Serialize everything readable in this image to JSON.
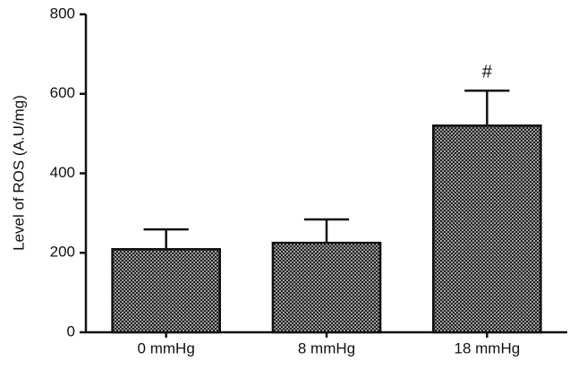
{
  "chart_data": {
    "type": "bar",
    "y_label": "Level of ROS (A.U/mg)",
    "categories": [
      "0 mmHg",
      "8 mmHg",
      "18 mmHg"
    ],
    "values": [
      209,
      225,
      520
    ],
    "errors": [
      50,
      59,
      88
    ],
    "ylim": [
      0,
      800
    ],
    "yticks": [
      0,
      200,
      400,
      600,
      800
    ],
    "annotations": [
      {
        "text": "#",
        "category": "18 mmHg"
      }
    ]
  }
}
